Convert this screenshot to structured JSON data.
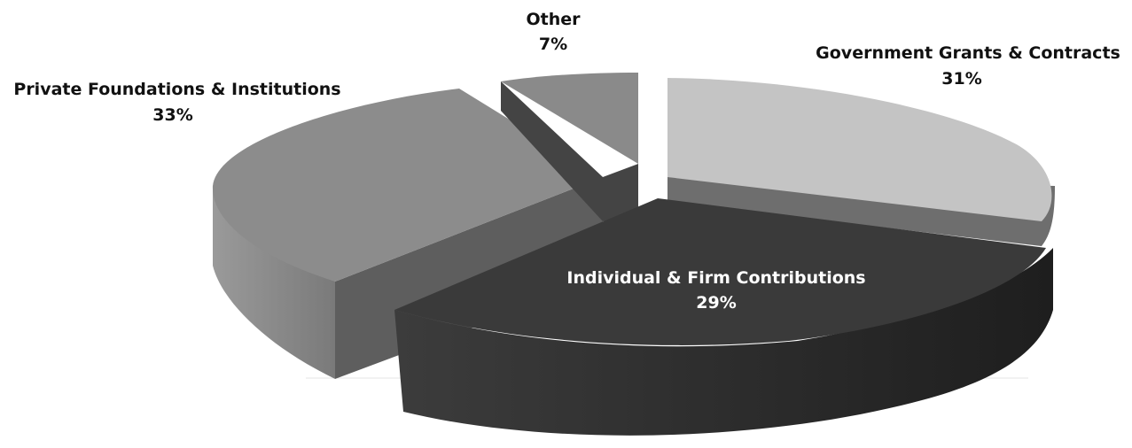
{
  "chart_data": {
    "type": "pie",
    "style": "3d-exploded",
    "slices": [
      {
        "label": "Government Grants & Contracts",
        "value": 31,
        "value_label": "31%",
        "color": "#c4c4c4",
        "side_color": "#6e6e6e"
      },
      {
        "label": "Individual & Firm Contributions",
        "value": 29,
        "value_label": "29%",
        "color": "#3a3a3a",
        "side_color": "#2a2a2a"
      },
      {
        "label": "Private Foundations & Institutions",
        "value": 33,
        "value_label": "33%",
        "color": "#8c8c8c",
        "side_color": "#5e5e5e"
      },
      {
        "label": "Other",
        "value": 7,
        "value_label": "7%",
        "color": "#8a8a8a",
        "side_color": "#444444"
      }
    ],
    "legend": "none",
    "data_labels": true
  }
}
